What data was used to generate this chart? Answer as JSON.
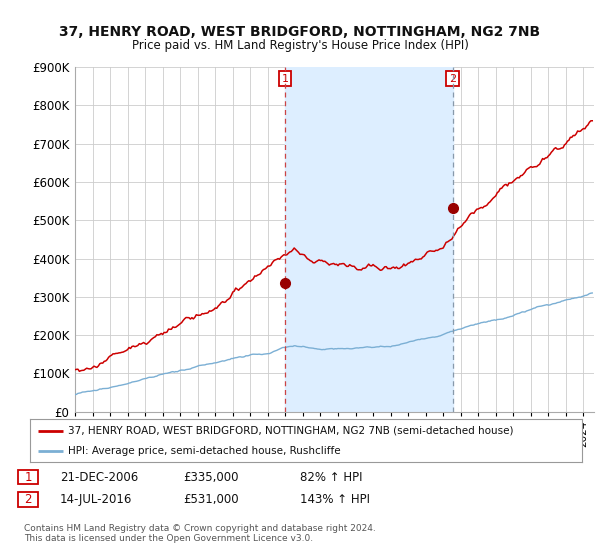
{
  "title_line1": "37, HENRY ROAD, WEST BRIDGFORD, NOTTINGHAM, NG2 7NB",
  "title_line2": "Price paid vs. HM Land Registry's House Price Index (HPI)",
  "ylim": [
    0,
    900000
  ],
  "yticks": [
    0,
    100000,
    200000,
    300000,
    400000,
    500000,
    600000,
    700000,
    800000,
    900000
  ],
  "ytick_labels": [
    "£0",
    "£100K",
    "£200K",
    "£300K",
    "£400K",
    "£500K",
    "£600K",
    "£700K",
    "£800K",
    "£900K"
  ],
  "background_color": "#ffffff",
  "plot_bg_color": "#ffffff",
  "grid_color": "#cccccc",
  "sale1_date_x": 2006.97,
  "sale1_price": 335000,
  "sale1_label": "1",
  "sale2_date_x": 2016.54,
  "sale2_price": 531000,
  "sale2_label": "2",
  "legend_line1": "37, HENRY ROAD, WEST BRIDGFORD, NOTTINGHAM, NG2 7NB (semi-detached house)",
  "legend_line2": "HPI: Average price, semi-detached house, Rushcliffe",
  "table_row1_num": "1",
  "table_row1_date": "21-DEC-2006",
  "table_row1_price": "£335,000",
  "table_row1_hpi": "82% ↑ HPI",
  "table_row2_num": "2",
  "table_row2_date": "14-JUL-2016",
  "table_row2_price": "£531,000",
  "table_row2_hpi": "143% ↑ HPI",
  "footer": "Contains HM Land Registry data © Crown copyright and database right 2024.\nThis data is licensed under the Open Government Licence v3.0.",
  "line_color_red": "#cc0000",
  "line_color_blue": "#7bafd4",
  "marker_color_red": "#990000",
  "vline1_color": "#cc4444",
  "vline2_color": "#8899aa",
  "box_color": "#cc0000",
  "shade_color": "#ddeeff",
  "xmin": 1995,
  "xmax": 2024.6
}
